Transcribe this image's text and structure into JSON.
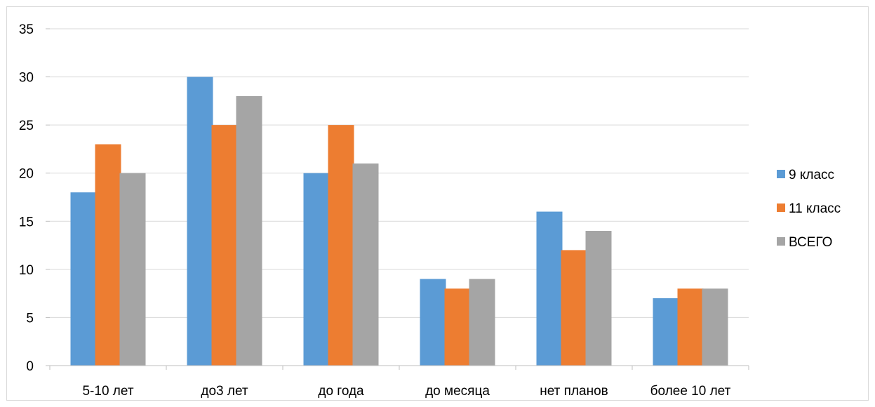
{
  "chart_data": {
    "type": "bar",
    "categories": [
      "5-10 лет",
      "до3 лет",
      "до года",
      "до месяца",
      "нет планов",
      "более 10 лет"
    ],
    "series": [
      {
        "name": "9 класс",
        "values": [
          18,
          30,
          20,
          9,
          16,
          7
        ],
        "color": "#5B9BD5"
      },
      {
        "name": "11 класс",
        "values": [
          23,
          25,
          25,
          8,
          12,
          8
        ],
        "color": "#ED7D31"
      },
      {
        "name": "ВСЕГО",
        "values": [
          20,
          28,
          21,
          9,
          14,
          8
        ],
        "color": "#A5A5A5"
      }
    ],
    "y_ticks": [
      "0",
      "5",
      "10",
      "15",
      "20",
      "25",
      "30",
      "35"
    ],
    "ylim": [
      0,
      35
    ],
    "grid": true,
    "legend_position": "right"
  }
}
